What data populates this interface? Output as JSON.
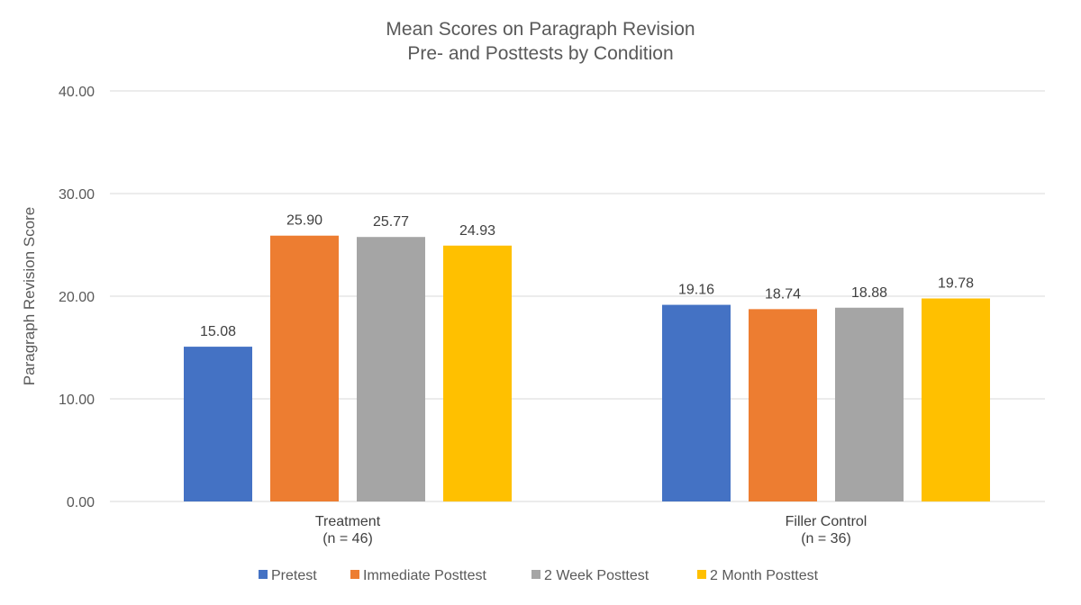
{
  "chart_data": {
    "type": "bar",
    "title": [
      "Mean Scores on Paragraph Revision",
      "Pre- and Posttests by Condition"
    ],
    "xlabel": "",
    "ylabel": "Paragraph Revision Score",
    "ylim": [
      0,
      40
    ],
    "yticks": [
      0,
      10,
      20,
      30,
      40
    ],
    "ytick_labels": [
      "0.00",
      "10.00",
      "20.00",
      "30.00",
      "40.00"
    ],
    "grid": true,
    "legend_position": "bottom",
    "categories": [
      [
        "Treatment",
        "(n = 46)"
      ],
      [
        "Filler Control",
        "(n = 36)"
      ]
    ],
    "series": [
      {
        "name": "Pretest",
        "color": "#4472c4",
        "values": [
          15.08,
          19.16
        ],
        "labels": [
          "15.08",
          "19.16"
        ]
      },
      {
        "name": "Immediate Posttest",
        "color": "#ed7d31",
        "values": [
          25.9,
          18.74
        ],
        "labels": [
          "25.90",
          "18.74"
        ]
      },
      {
        "name": "2 Week Posttest",
        "color": "#a5a5a5",
        "values": [
          25.77,
          18.88
        ],
        "labels": [
          "25.77",
          "18.88"
        ]
      },
      {
        "name": "2 Month Posttest",
        "color": "#ffc000",
        "values": [
          24.93,
          19.78
        ],
        "labels": [
          "24.93",
          "19.78"
        ]
      }
    ]
  }
}
